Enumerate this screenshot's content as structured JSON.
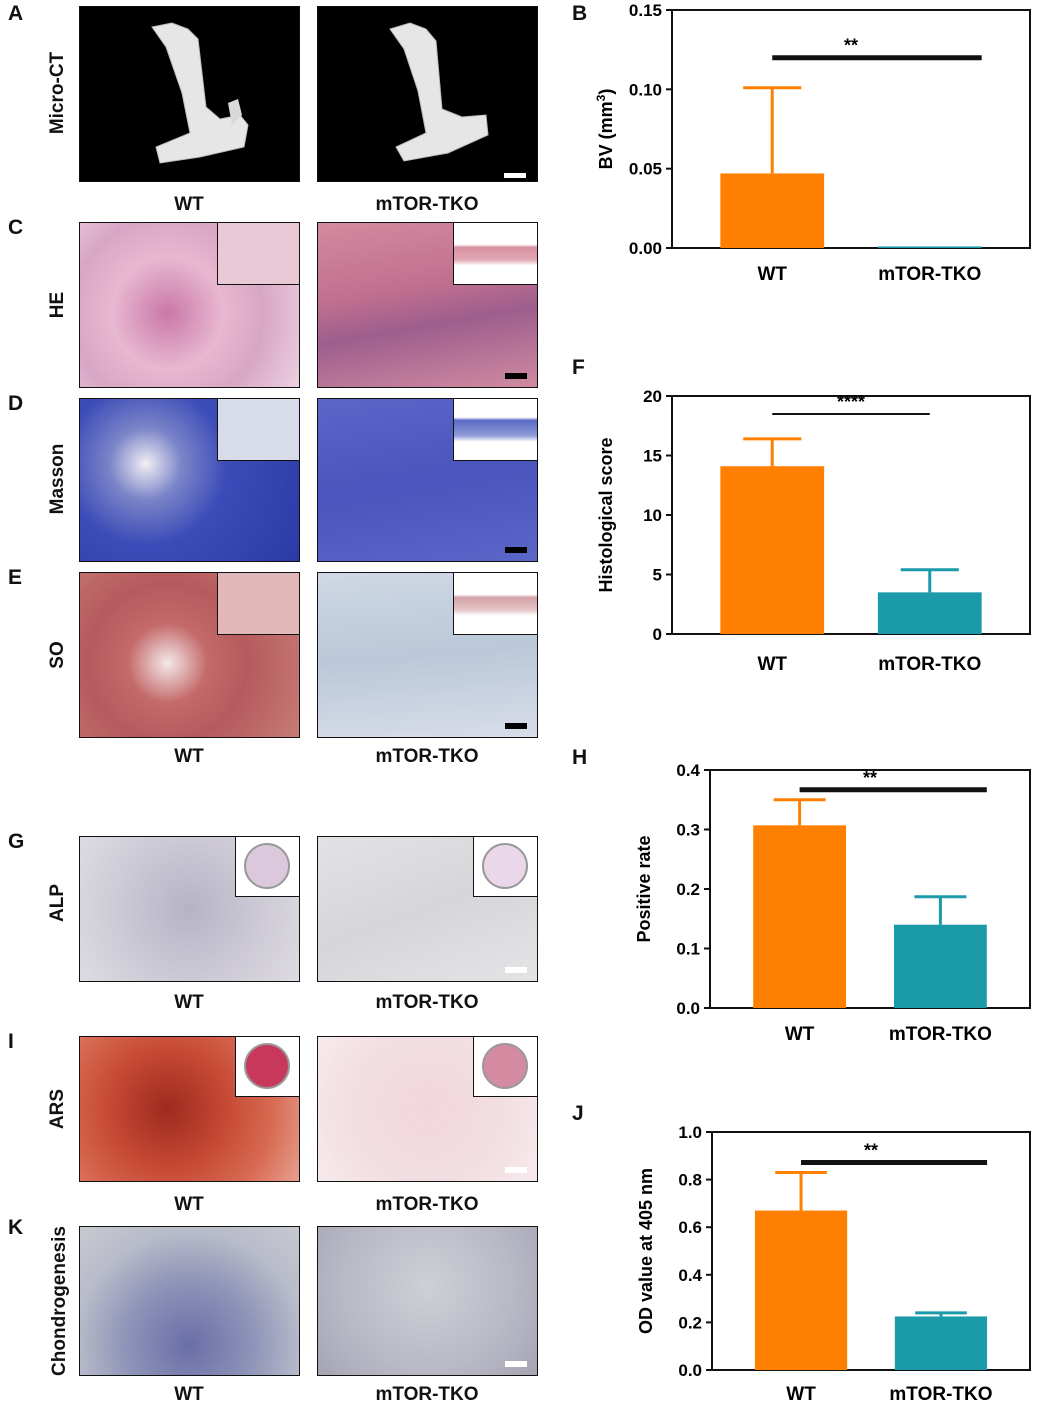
{
  "panels": {
    "A": "A",
    "B": "B",
    "C": "C",
    "D": "D",
    "E": "E",
    "F": "F",
    "G": "G",
    "H": "H",
    "I": "I",
    "J": "J",
    "K": "K"
  },
  "rows": {
    "microct": "Micro-CT",
    "he": "HE",
    "masson": "Masson",
    "so": "SO",
    "alp": "ALP",
    "ars": "ARS",
    "chondro": "Chondrogenesis"
  },
  "groups": {
    "wt": "WT",
    "tko": "mTOR-TKO"
  },
  "colors": {
    "wt": "#ff8000",
    "tko": "#1b9aaa"
  },
  "chart_data": [
    {
      "id": "B",
      "type": "bar",
      "categories": [
        "WT",
        "mTOR-TKO"
      ],
      "values": [
        0.047,
        0.001
      ],
      "errors": [
        0.054,
        0.0
      ],
      "ylabel": "BV (mm3)",
      "yticks": [
        "0.00",
        "0.05",
        "0.10",
        "0.15"
      ],
      "ylim": [
        0,
        0.15
      ],
      "significance": "**"
    },
    {
      "id": "F",
      "type": "bar",
      "categories": [
        "WT",
        "mTOR-TKO"
      ],
      "values": [
        14.1,
        3.5
      ],
      "errors": [
        2.3,
        1.9
      ],
      "ylabel": "Histological score",
      "yticks": [
        "0",
        "5",
        "10",
        "15",
        "20"
      ],
      "ylim": [
        0,
        20
      ],
      "significance": "****"
    },
    {
      "id": "H",
      "type": "bar",
      "categories": [
        "WT",
        "mTOR-TKO"
      ],
      "values": [
        0.307,
        0.14
      ],
      "errors": [
        0.043,
        0.047
      ],
      "ylabel": "Positive rate",
      "yticks": [
        "0.0",
        "0.1",
        "0.2",
        "0.3",
        "0.4"
      ],
      "ylim": [
        0,
        0.4
      ],
      "significance": "**"
    },
    {
      "id": "J",
      "type": "bar",
      "categories": [
        "WT",
        "mTOR-TKO"
      ],
      "values": [
        0.67,
        0.225
      ],
      "errors": [
        0.16,
        0.015
      ],
      "ylabel": "OD value at 405 nm",
      "yticks": [
        "0.0",
        "0.2",
        "0.4",
        "0.6",
        "0.8",
        "1.0"
      ],
      "ylim": [
        0,
        1.0
      ],
      "significance": "**"
    }
  ]
}
